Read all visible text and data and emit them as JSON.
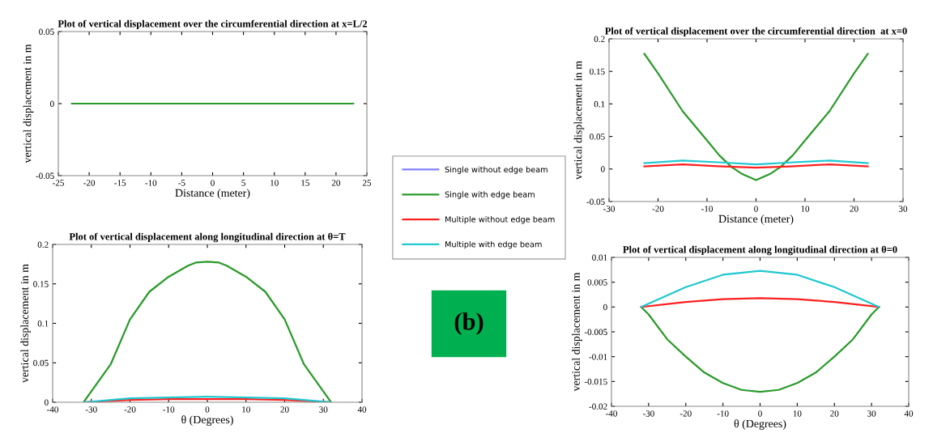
{
  "chart_data": [
    {
      "type": "line",
      "title": "Plot of vertical displacement over the circumferential direction at x=L/2",
      "xlabel": "Distance (meter)",
      "ylabel": "vertical displacement in m",
      "xlim": [
        -25,
        25
      ],
      "ylim": [
        -0.05,
        0.05
      ],
      "xticks": [
        -25,
        -20,
        -15,
        -10,
        -5,
        0,
        5,
        10,
        15,
        20,
        25
      ],
      "yticks": [
        -0.05,
        0,
        0.05
      ],
      "legend": "right",
      "annotations": [
        "(b)"
      ],
      "series": [
        {
          "name": "Single without edge beam",
          "color": "#8080ff"
        },
        {
          "name": "Single with edge beam",
          "color": "#2a9a2a",
          "x": [
            -22.8,
            -12.8,
            0,
            12.8,
            22.8
          ],
          "values": [
            0,
            0,
            0,
            0,
            0
          ]
        },
        {
          "name": "Multiple without edge beam",
          "color": "#ff2020"
        },
        {
          "name": "Multiple with edge beam",
          "color": "#20c8d0"
        }
      ]
    },
    {
      "type": "line",
      "title": "Plot of vertical displacement over the circumferential direction  at x=0",
      "xlabel": "Distance (meter)",
      "ylabel": "vertical displacement in m",
      "xlim": [
        -30,
        30
      ],
      "ylim": [
        -0.05,
        0.2
      ],
      "xticks": [
        -30,
        -20,
        -10,
        0,
        10,
        20,
        30
      ],
      "yticks": [
        -0.05,
        0,
        0.05,
        0.1,
        0.15,
        0.2
      ],
      "series": [
        {
          "color": "#2a9a2a",
          "x": [
            -22.8,
            -20,
            -15,
            -10,
            -7.5,
            -5,
            -3,
            0,
            3,
            5,
            7.5,
            10,
            15,
            20,
            22.8
          ],
          "values": [
            0.177,
            0.147,
            0.089,
            0.044,
            0.021,
            0.003,
            -0.007,
            -0.017,
            -0.007,
            0.003,
            0.021,
            0.044,
            0.089,
            0.147,
            0.177
          ]
        },
        {
          "color": "#ff2020",
          "x": [
            -22.8,
            -15,
            -7,
            0,
            7,
            15,
            22.8
          ],
          "values": [
            0.004,
            0.007,
            0.004,
            0.002,
            0.004,
            0.007,
            0.004
          ]
        },
        {
          "color": "#20c8d0",
          "x": [
            -22.8,
            -15,
            -7,
            0,
            7,
            15,
            22.8
          ],
          "values": [
            0.009,
            0.013,
            0.01,
            0.007,
            0.01,
            0.013,
            0.009
          ]
        }
      ]
    },
    {
      "type": "line",
      "title": "Plot of vertical displacement along longitudinal direction at θ=T",
      "xlabel": "θ (Degrees)",
      "ylabel": "vertical displacement in m",
      "xlim": [
        -40,
        40
      ],
      "ylim": [
        0,
        0.2
      ],
      "xticks": [
        -40,
        -30,
        -20,
        -10,
        0,
        10,
        20,
        30,
        40
      ],
      "yticks": [
        0,
        0.05,
        0.1,
        0.15,
        0.2
      ],
      "series": [
        {
          "color": "#2a9a2a",
          "x": [
            -32,
            -25,
            -20,
            -15,
            -10,
            -5,
            -3,
            0,
            3,
            5,
            10,
            15,
            20,
            25,
            32
          ],
          "values": [
            0,
            0.048,
            0.105,
            0.14,
            0.159,
            0.173,
            0.177,
            0.178,
            0.177,
            0.173,
            0.159,
            0.14,
            0.105,
            0.048,
            0
          ]
        },
        {
          "color": "#ff2020",
          "x": [
            -32,
            -20,
            -10,
            0,
            10,
            20,
            32
          ],
          "values": [
            0,
            0.003,
            0.004,
            0.004,
            0.004,
            0.003,
            0
          ]
        },
        {
          "color": "#20c8d0",
          "x": [
            -32,
            -20,
            -10,
            0,
            10,
            20,
            32
          ],
          "values": [
            0,
            0.005,
            0.006,
            0.007,
            0.006,
            0.005,
            0
          ]
        }
      ]
    },
    {
      "type": "line",
      "title": "Plot of vertical displacement along longitudinal direction at θ=0",
      "xlabel": "θ (Degrees)",
      "ylabel": "vertical displacement in m",
      "xlim": [
        -40,
        40
      ],
      "ylim": [
        -0.02,
        0.01
      ],
      "xticks": [
        -40,
        -30,
        -20,
        -10,
        0,
        10,
        20,
        30,
        40
      ],
      "yticks": [
        -0.02,
        -0.015,
        -0.01,
        -0.005,
        0,
        0.005,
        0.01
      ],
      "series": [
        {
          "color": "#2a9a2a",
          "x": [
            -32,
            -30,
            -25,
            -20,
            -15,
            -10,
            -5,
            0,
            5,
            10,
            15,
            20,
            25,
            30,
            32
          ],
          "values": [
            0,
            -0.0015,
            -0.0065,
            -0.01,
            -0.0132,
            -0.0153,
            -0.0167,
            -0.0171,
            -0.0167,
            -0.0153,
            -0.0132,
            -0.01,
            -0.0065,
            -0.0015,
            0
          ]
        },
        {
          "color": "#ff2020",
          "x": [
            -32,
            -20,
            -10,
            0,
            10,
            20,
            32
          ],
          "values": [
            0,
            0.001,
            0.0016,
            0.0018,
            0.0016,
            0.001,
            0
          ]
        },
        {
          "color": "#20c8d0",
          "x": [
            -32,
            -20,
            -10,
            0,
            10,
            20,
            32
          ],
          "values": [
            0,
            0.004,
            0.0065,
            0.0073,
            0.0065,
            0.004,
            0
          ]
        }
      ]
    }
  ]
}
